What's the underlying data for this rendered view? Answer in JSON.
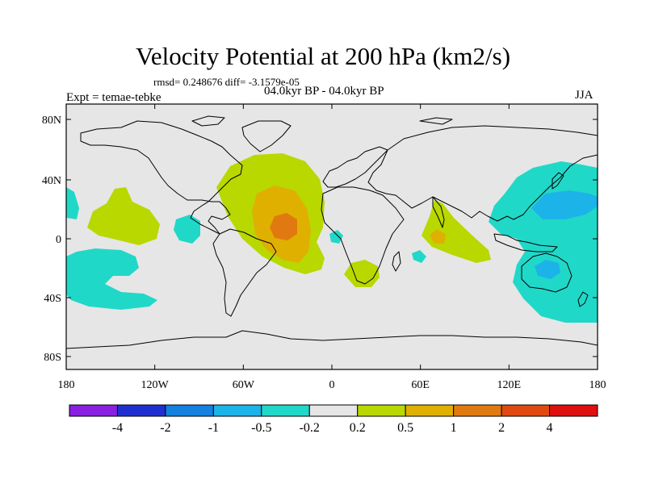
{
  "title": "Velocity Potential at 200 hPa (km2/s)",
  "stats": "rmsd= 0.248676 diff= -3.1579e-05",
  "experiment": "Expt = temae-tebke",
  "period": "04.0kyr BP - 04.0kyr BP",
  "season": "JJA",
  "map": {
    "background": "#e6e6e6",
    "lon_ticks": [
      "180",
      "120W",
      "60W",
      "0",
      "60E",
      "120E",
      "180"
    ],
    "lat_ticks": [
      "80N",
      "40N",
      "0",
      "40S",
      "80S"
    ]
  },
  "colorbar": {
    "colors": [
      "#8a20e0",
      "#2030d0",
      "#1480e0",
      "#1cb4e8",
      "#20d8c8",
      "#e6e6e6",
      "#b8d800",
      "#e0b000",
      "#e07a10",
      "#e04a10",
      "#e01010"
    ],
    "labels": [
      "-4",
      "-2",
      "-1",
      "-0.5",
      "-0.2",
      "0.2",
      "0.5",
      "1",
      "2",
      "4"
    ]
  }
}
